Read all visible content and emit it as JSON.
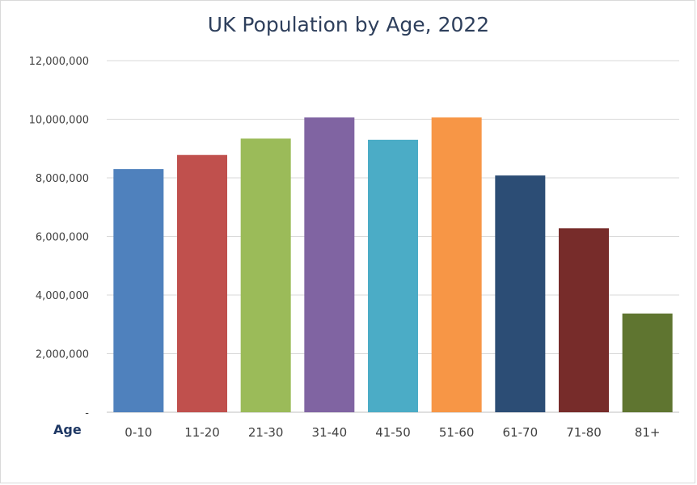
{
  "chart_data": {
    "type": "bar",
    "title": "UK Population by Age, 2022",
    "xlabel": "Age",
    "ylabel": "",
    "categories": [
      "0-10",
      "11-20",
      "21-30",
      "31-40",
      "41-50",
      "51-60",
      "61-70",
      "71-80",
      "81+"
    ],
    "values": [
      8300000,
      8780000,
      9340000,
      10060000,
      9300000,
      10060000,
      8080000,
      6280000,
      3370000
    ],
    "colors": [
      "#4f81bd",
      "#c0504d",
      "#9bbb59",
      "#8064a2",
      "#4bacc6",
      "#f79646",
      "#2c4d75",
      "#772c2a",
      "#5f7530"
    ],
    "ylim": [
      0,
      12000000
    ],
    "yticks": [
      0,
      2000000,
      4000000,
      6000000,
      8000000,
      10000000,
      12000000
    ],
    "ytick_labels": [
      "-",
      "2,000,000",
      "4,000,000",
      "6,000,000",
      "8,000,000",
      "10,000,000",
      "12,000,000"
    ],
    "grid": true,
    "legend": "none"
  }
}
